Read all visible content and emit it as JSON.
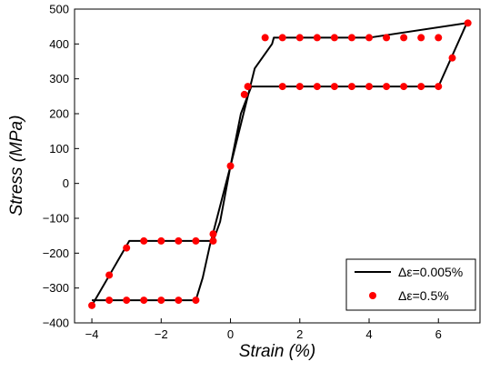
{
  "chart_data": {
    "type": "line",
    "xlabel": "Strain (%)",
    "ylabel": "Stress (MPa)",
    "xlim": [
      -4.5,
      7.2
    ],
    "ylim": [
      -400,
      500
    ],
    "xticks": [
      -4,
      -2,
      0,
      2,
      4,
      6
    ],
    "yticks": [
      -400,
      -300,
      -200,
      -100,
      0,
      100,
      200,
      300,
      400,
      500
    ],
    "xtick_labels": [
      "−4",
      "−2",
      "0",
      "2",
      "4",
      "6"
    ],
    "ytick_labels": [
      "−400",
      "−300",
      "−200",
      "−100",
      "0",
      "100",
      "200",
      "300",
      "400",
      "500"
    ],
    "grid": false,
    "legend_position": "bottom-right",
    "series": [
      {
        "name": "Δε=0.005%",
        "type": "line",
        "color": "#000000",
        "x": [
          -4.0,
          -2.92,
          -2.0,
          -1.0,
          -0.5,
          -0.3,
          0.0,
          0.7,
          1.2,
          1.25,
          4.0,
          6.82,
          6.0,
          4.0,
          0.6,
          0.3,
          0.0,
          -0.6,
          -0.8,
          -1.0,
          -2.0,
          -4.0
        ],
        "y": [
          -350,
          -165,
          -165,
          -165,
          -165,
          -110,
          50,
          330,
          400,
          418,
          418,
          460,
          278,
          278,
          278,
          200,
          50,
          -180,
          -270,
          -335,
          -335,
          -335
        ]
      },
      {
        "name": "Δε=0.5%",
        "type": "scatter",
        "color": "#ff0000",
        "x": [
          -4.0,
          -3.5,
          -3.5,
          -3.0,
          -3.0,
          -2.5,
          -2.0,
          -1.5,
          -1.0,
          -0.5,
          -0.5,
          -2.5,
          -2.0,
          -1.5,
          -1.0,
          0.0,
          0.4,
          0.5,
          1.5,
          2.0,
          2.5,
          3.0,
          3.5,
          4.0,
          4.5,
          5.0,
          5.5,
          6.0,
          1.0,
          1.5,
          2.0,
          2.5,
          3.0,
          3.5,
          4.0,
          4.5,
          5.0,
          5.5,
          6.0,
          6.4,
          6.85
        ],
        "y": [
          -350,
          -263,
          -335,
          -185,
          -335,
          -165,
          -165,
          -165,
          -165,
          -165,
          -145,
          -335,
          -335,
          -335,
          -335,
          50,
          255,
          278,
          278,
          278,
          278,
          278,
          278,
          278,
          278,
          278,
          278,
          278,
          418,
          418,
          418,
          418,
          418,
          418,
          418,
          418,
          418,
          418,
          418,
          360,
          460
        ]
      }
    ]
  }
}
